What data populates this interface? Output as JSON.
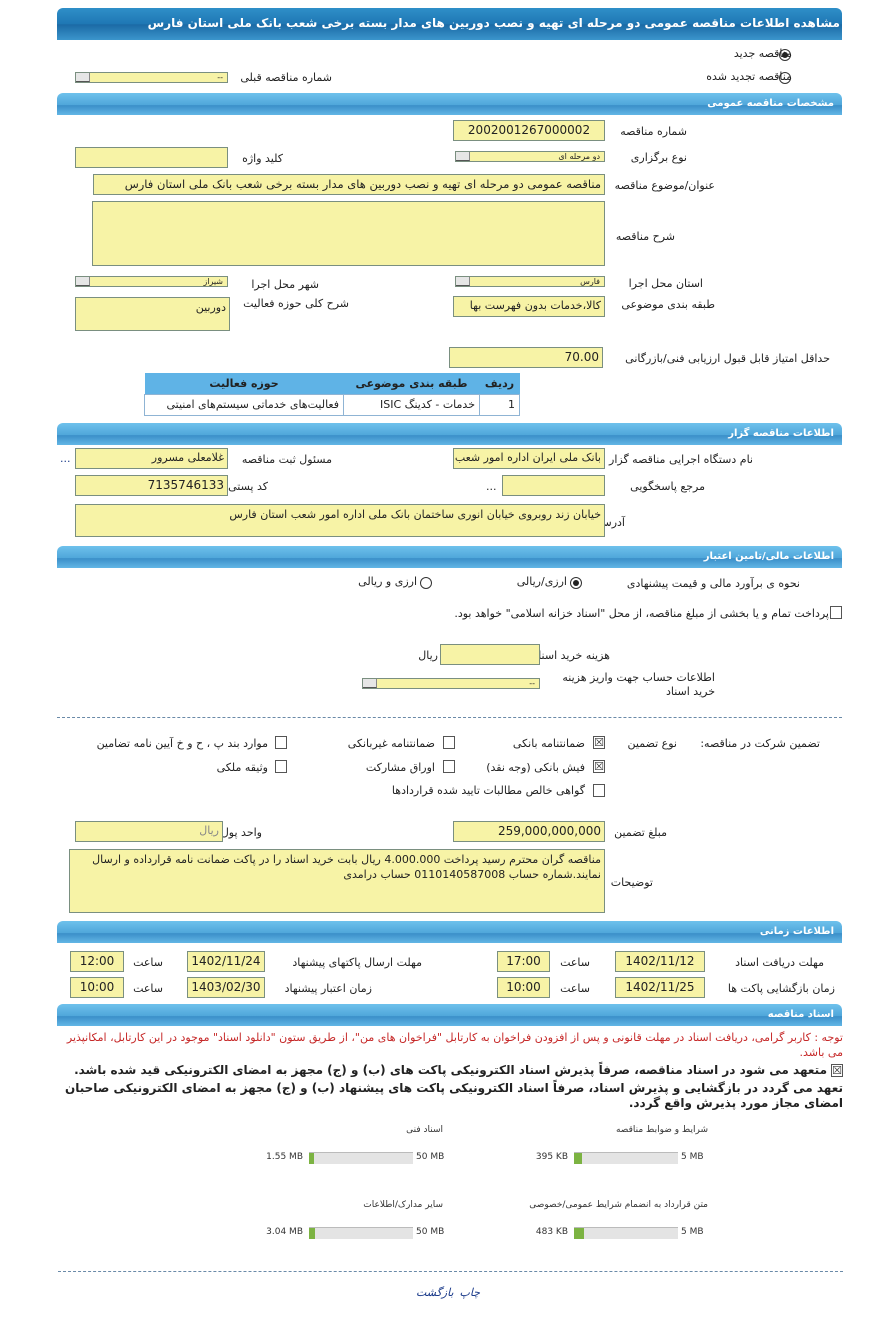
{
  "title": "مشاهده اطلاعات مناقصه عمومی دو مرحله ای تهیه و نصب دوربین های مدار بسته برخی شعب بانک ملی استان فارس",
  "tender_status": {
    "new_label": "مناقصه جدید",
    "new_selected": true,
    "renewed_label": "مناقصه تجدید شده",
    "renewed_selected": false,
    "prev_number_label": "شماره مناقصه قبلی",
    "prev_number_value": "--"
  },
  "general": {
    "header": "مشخصات مناقصه عمومی",
    "number_label": "شماره مناقصه",
    "number_value": "2002001267000002",
    "type_label": "نوع برگزاری",
    "type_value": "دو مرحله ای",
    "keyword_label": "کلید واژه",
    "keyword_value": "",
    "subject_label": "عنوان/موضوع مناقصه",
    "subject_value": "مناقصه عمومی دو مرحله ای تهیه و نصب دوربین های مدار بسته برخی شعب بانک ملی استان فارس",
    "description_label": "شرح مناقصه",
    "description_value": "",
    "province_label": "استان محل اجرا",
    "province_value": "فارس",
    "city_label": "شهر محل اجرا",
    "city_value": "شیراز",
    "category_label": "طبقه بندی موضوعی",
    "category_value": "کالا،خدمات بدون فهرست بها",
    "activity_label": "شرح کلی حوزه فعالیت",
    "activity_value": "دوربین",
    "min_score_label": "حداقل امتیاز قابل قبول ارزیابی فنی/بازرگانی",
    "min_score_value": "70.00",
    "table": {
      "headers": [
        "ردیف",
        "طبقه بندی موضوعی",
        "حوزه فعالیت"
      ],
      "rows": [
        [
          "1",
          "خدمات - کدینگ ISIC",
          "فعالیت‌های خدماتی سیستم‌های امنیتی"
        ]
      ]
    }
  },
  "organizer": {
    "header": "اطلاعات مناقصه گزار",
    "org_label": "نام دستگاه اجرایی مناقصه گزار",
    "org_value": "بانک ملی ایران اداره امور شعب",
    "responsible_label": "مسئول ثبت مناقصه",
    "responsible_value": "غلامعلی مسرور",
    "more": "...",
    "reference_label": "مرجع پاسخگویی",
    "reference_value": "",
    "postal_label": "کد پستی",
    "postal_value": "7135746133",
    "address_label": "آدرس",
    "address_value": "خیابان زند روبروی خیابان انوری ساختمان بانک ملی اداره امور شعب استان فارس"
  },
  "finance": {
    "header": "اطلاعات مالی/تامین اعتبار",
    "estimate_label": "نحوه ی برآورد مالی و قیمت پیشنهادی",
    "opt1": "ارزی/ریالی",
    "opt1_selected": true,
    "opt2": "ارزی و ریالی",
    "opt2_selected": false,
    "treasury_text": "پرداخت تمام و یا بخشی از مبلغ مناقصه، از محل \"اسناد خزانه اسلامی\" خواهد بود.",
    "treasury_checked": false,
    "doc_cost_label": "هزینه خرید اسناد",
    "doc_cost_value": "",
    "doc_cost_unit": "ریال",
    "account_label": "اطلاعات حساب جهت واریز هزینه خرید اسناد",
    "account_value": "--"
  },
  "guarantee": {
    "label": "تضمین شرکت در مناقصه:",
    "type_label": "نوع تضمین",
    "options": [
      {
        "label": "ضمانتنامه بانکی",
        "checked": true
      },
      {
        "label": "ضمانتنامه غیربانکی",
        "checked": false
      },
      {
        "label": "موارد بند پ ، ح و خ آیین نامه تضامین",
        "checked": false
      },
      {
        "label": "فیش بانکی (وجه نقد)",
        "checked": true
      },
      {
        "label": "اوراق مشارکت",
        "checked": false
      },
      {
        "label": "وثیقه ملکی",
        "checked": false
      },
      {
        "label": "گواهی خالص مطالبات تایید شده قراردادها",
        "checked": false
      }
    ],
    "amount_label": "مبلغ تضمین",
    "amount_value": "259,000,000,000",
    "currency_label": "واحد پول",
    "currency_value": "ریال",
    "notes_label": "توضیحات",
    "notes_value": "مناقصه گران محترم رسید پرداخت 4.000.000 ریال بابت خرید اسناد را در پاکت ضمانت نامه قرارداده و ارسال نمایند.شماره حساب 0110140587008 حساب درامدی"
  },
  "timing": {
    "header": "اطلاعات زمانی",
    "hour_label": "ساعت",
    "doc_receive_label": "مهلت دریافت اسناد",
    "doc_receive_date": "1402/11/12",
    "doc_receive_time": "17:00",
    "submit_label": "مهلت ارسال پاکتهای پیشنهاد",
    "submit_date": "1402/11/24",
    "submit_time": "12:00",
    "opening_label": "زمان بازگشایی پاکت ها",
    "opening_date": "1402/11/25",
    "opening_time": "10:00",
    "validity_label": "زمان اعتبار پیشنهاد",
    "validity_date": "1403/02/30",
    "validity_time": "10:00"
  },
  "documents": {
    "header": "اسناد مناقصه",
    "note": "توجه : کاربر گرامی، دریافت اسناد در مهلت قانونی و پس از افزودن فراخوان به کارتابل \"فراخوان های من\"، از طریق ستون \"دانلود اسناد\" موجود در این کارتابل، امکانپذیر می باشد.",
    "commit1": "متعهد می شود در اسناد مناقصه، صرفاً پذیرش اسناد الکترونیکی پاکت های (ب) و (ج) مجهز به امضای الکترونیکی قید شده باشد.",
    "commit1_checked": true,
    "commit2": "تعهد می گردد در بازگشایی و پذیرش اسناد، صرفاً اسناد الکترونیکی پاکت های پیشنهاد (ب) و (ج) مجهز به امضای الکترونیکی صاحبان امضای مجاز مورد پذیرش واقع گردد.",
    "files": [
      {
        "label": "شرایط و ضوابط مناقصه",
        "size": "395 KB",
        "max": "5 MB",
        "fraction": 0.077
      },
      {
        "label": "اسناد فنی",
        "size": "1.55 MB",
        "max": "50 MB",
        "fraction": 0.031
      },
      {
        "label": "متن قرارداد به انضمام شرایط عمومی/خصوصی",
        "size": "483 KB",
        "max": "5 MB",
        "fraction": 0.094
      },
      {
        "label": "سایر مدارک/اطلاعات",
        "size": "3.04 MB",
        "max": "50 MB",
        "fraction": 0.061
      }
    ]
  },
  "footer": {
    "print": "چاپ",
    "back": "بازگشت"
  }
}
